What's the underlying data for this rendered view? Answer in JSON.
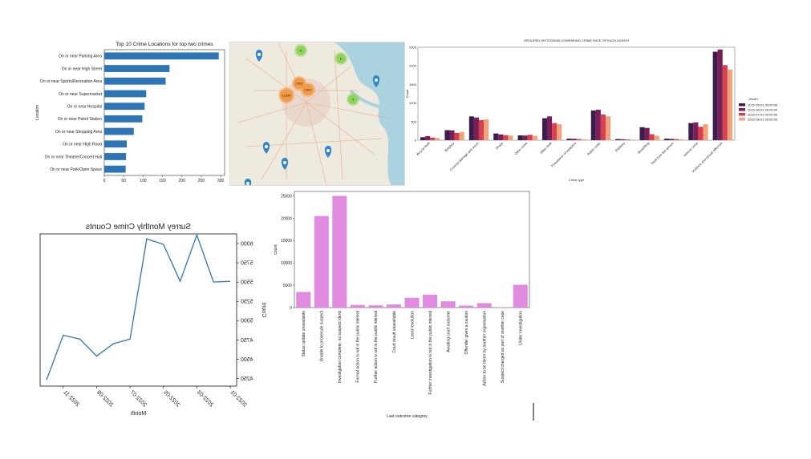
{
  "chart_data": [
    {
      "type": "bar",
      "orientation": "horizontal",
      "title": "Top 10 Crime Locations for top two crimes",
      "xlabel": "",
      "ylabel": "Location",
      "xlim": [
        0,
        310
      ],
      "xticks": [
        "0",
        "50",
        "100",
        "150",
        "200",
        "250",
        "300"
      ],
      "categories": [
        "On or near Parking Area",
        "On or near High Street",
        "On or near Sports/Recreation Area",
        "On or near Supermarket",
        "On or near Hospital",
        "On or near Petrol Station",
        "On or near Shopping Area",
        "On or near High Road",
        "On or near Theatre/Concert Hall",
        "On or near Park/Open Space"
      ],
      "values": [
        295,
        168,
        158,
        108,
        104,
        98,
        76,
        58,
        56,
        55
      ],
      "color": "#2e75b6"
    },
    {
      "type": "map",
      "cluster_labels": [
        "8",
        "8",
        "4",
        "1502",
        "1401",
        "11309"
      ],
      "colors": {
        "cluster_green": "#8fd35a",
        "cluster_orange": "#f39a45",
        "marker_blue": "#2f87c9",
        "water": "#aad3df",
        "land": "#efeae0"
      }
    },
    {
      "type": "bar",
      "grouped": true,
      "title": "GROUPED HISTOGRAM COMPARING CRIME RATE OF EACH MONTH",
      "xlabel": "Crime type",
      "ylabel": "Count",
      "ylim": [
        0,
        2500
      ],
      "yticks": [
        "0",
        "500",
        "1000",
        "1500",
        "2000",
        "2500"
      ],
      "legend_title": "Month",
      "legend_position": "right",
      "categories": [
        "Bicycle theft",
        "Burglary",
        "Criminal damage and arson",
        "Drugs",
        "Other crime",
        "Other theft",
        "Possession of weapons",
        "Public order",
        "Robbery",
        "Shoplifting",
        "Theft from the person",
        "Vehicle crime",
        "Violence and sexual offences"
      ],
      "series": [
        {
          "name": "2022-05-01 00:00:00",
          "color": "#3b1c4c",
          "values": [
            80,
            270,
            640,
            180,
            130,
            590,
            40,
            800,
            30,
            350,
            40,
            460,
            2380
          ]
        },
        {
          "name": "2022-06-01 00:00:00",
          "color": "#7a1f57",
          "values": [
            110,
            265,
            610,
            155,
            125,
            640,
            38,
            820,
            25,
            330,
            35,
            480,
            2440
          ]
        },
        {
          "name": "2022-07-01 00:00:00",
          "color": "#d9404f",
          "values": [
            70,
            195,
            540,
            135,
            145,
            460,
            30,
            690,
            20,
            160,
            28,
            360,
            2020
          ]
        },
        {
          "name": "2022-08-01 00:00:00",
          "color": "#f3a37c",
          "values": [
            60,
            220,
            560,
            125,
            115,
            430,
            25,
            640,
            15,
            120,
            22,
            430,
            1900
          ]
        }
      ]
    },
    {
      "type": "line",
      "mirrored": true,
      "title": "Surrey Monthly Crime Counts",
      "xlabel": "Month",
      "ylabel": "Count",
      "ylim": [
        4150,
        6125
      ],
      "yticks": [
        "4250",
        "4500",
        "4750",
        "5000",
        "5250",
        "5500",
        "5750",
        "6000"
      ],
      "xticks": [
        "2022-01",
        "2022-03",
        "2022-05",
        "2022-07",
        "2022-09",
        "2022-11"
      ],
      "x": [
        "2022-01",
        "2022-02",
        "2022-03",
        "2022-04",
        "2022-05",
        "2022-06",
        "2022-07",
        "2022-08",
        "2022-09",
        "2022-10",
        "2022-11",
        "2022-12"
      ],
      "values": [
        5510,
        5500,
        6110,
        5510,
        5990,
        6060,
        4760,
        4700,
        4540,
        4760,
        4810,
        4230
      ],
      "color": "#2e75b6"
    },
    {
      "type": "bar",
      "title": "",
      "xlabel": "Last outcome category",
      "ylabel": "count",
      "ylim": [
        0,
        26000
      ],
      "yticks": [
        "0",
        "5000",
        "10000",
        "15000",
        "20000",
        "25000"
      ],
      "categories": [
        "Status update unavailable",
        "Unable to prosecute suspect",
        "Investigation complete; no suspect identified",
        "Formal action is not in the public interest",
        "Further action is not in the public interest",
        "Court result unavailable",
        "Local resolution",
        "Further investigation is not in the public interest",
        "Awaiting court outcome",
        "Offender given a caution",
        "Action to be taken by another organisation",
        "Suspect charged as part of another case",
        "Under investigation"
      ],
      "display_labels": [
        "Status update unavailable",
        "Unable to prosecute suspect",
        "Investigation complete; no suspect identi",
        "Formal action is not in the public interest",
        "Further action is not in the public interest",
        "Court result unavailable",
        "Local resolution",
        "Further investigation is not in the public interest",
        "Awaiting court outcome",
        "Offender given a caution",
        "Action to be taken by another organisation",
        "Suspect charged as part of another case",
        "Under investigation"
      ],
      "values": [
        3500,
        20500,
        25000,
        600,
        500,
        700,
        2200,
        2900,
        1400,
        450,
        1000,
        80,
        5100
      ],
      "color": "#e08be0"
    }
  ]
}
